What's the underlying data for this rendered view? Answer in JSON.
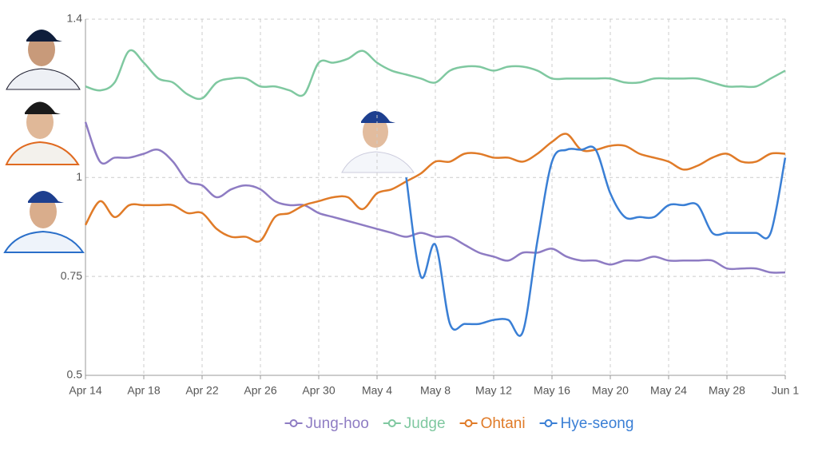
{
  "chart_data": {
    "type": "line",
    "categories": [
      "Apr 14",
      null,
      null,
      null,
      "Apr 18",
      null,
      null,
      null,
      "Apr 22",
      null,
      null,
      null,
      "Apr 26",
      null,
      null,
      null,
      "Apr 30",
      null,
      null,
      null,
      "May 4",
      null,
      null,
      null,
      "May 8",
      null,
      null,
      null,
      "May 12",
      null,
      null,
      null,
      "May 16",
      null,
      null,
      null,
      "May 20",
      null,
      null,
      null,
      "May 24",
      null,
      null,
      null,
      "May 28",
      null,
      null,
      null,
      "Jun 1"
    ],
    "ylim": [
      0.5,
      1.4
    ],
    "yticks": [
      0.5,
      0.75,
      1,
      1.4
    ],
    "grid": true,
    "legend": "bottom",
    "series": [
      {
        "name": "Jung-hoo",
        "color": "#8e7cc3",
        "values": [
          1.14,
          1.04,
          1.05,
          1.05,
          1.06,
          1.07,
          1.04,
          0.99,
          0.98,
          0.95,
          0.97,
          0.98,
          0.97,
          0.94,
          0.93,
          0.93,
          0.91,
          0.9,
          0.89,
          0.88,
          0.87,
          0.86,
          0.85,
          0.86,
          0.85,
          0.85,
          0.83,
          0.81,
          0.8,
          0.79,
          0.81,
          0.81,
          0.82,
          0.8,
          0.79,
          0.79,
          0.78,
          0.79,
          0.79,
          0.8,
          0.79,
          0.79,
          0.79,
          0.79,
          0.77,
          0.77,
          0.77,
          0.76,
          0.76
        ]
      },
      {
        "name": "Judge",
        "color": "#7fc8a0",
        "values": [
          1.23,
          1.22,
          1.24,
          1.32,
          1.29,
          1.25,
          1.24,
          1.21,
          1.2,
          1.24,
          1.25,
          1.25,
          1.23,
          1.23,
          1.22,
          1.21,
          1.29,
          1.29,
          1.3,
          1.32,
          1.29,
          1.27,
          1.26,
          1.25,
          1.24,
          1.27,
          1.28,
          1.28,
          1.27,
          1.28,
          1.28,
          1.27,
          1.25,
          1.25,
          1.25,
          1.25,
          1.25,
          1.24,
          1.24,
          1.25,
          1.25,
          1.25,
          1.25,
          1.24,
          1.23,
          1.23,
          1.23,
          1.25,
          1.27
        ]
      },
      {
        "name": "Ohtani",
        "color": "#e07b28",
        "values": [
          0.88,
          0.94,
          0.9,
          0.93,
          0.93,
          0.93,
          0.93,
          0.91,
          0.91,
          0.87,
          0.85,
          0.85,
          0.84,
          0.9,
          0.91,
          0.93,
          0.94,
          0.95,
          0.95,
          0.92,
          0.96,
          0.97,
          0.99,
          1.01,
          1.04,
          1.04,
          1.06,
          1.06,
          1.05,
          1.05,
          1.04,
          1.06,
          1.09,
          1.11,
          1.07,
          1.07,
          1.08,
          1.08,
          1.06,
          1.05,
          1.04,
          1.02,
          1.03,
          1.05,
          1.06,
          1.04,
          1.04,
          1.06,
          1.06
        ]
      },
      {
        "name": "Hye-seong",
        "color": "#3a7fd5",
        "values": [
          null,
          null,
          null,
          null,
          null,
          null,
          null,
          null,
          null,
          null,
          null,
          null,
          null,
          null,
          null,
          null,
          null,
          null,
          null,
          null,
          null,
          null,
          1.0,
          0.75,
          0.83,
          0.63,
          0.63,
          0.63,
          0.64,
          0.64,
          0.61,
          0.84,
          1.04,
          1.07,
          1.07,
          1.07,
          0.96,
          0.9,
          0.9,
          0.9,
          0.93,
          0.93,
          0.93,
          0.86,
          0.86,
          0.86,
          0.86,
          0.86,
          1.05
        ]
      }
    ]
  }
}
